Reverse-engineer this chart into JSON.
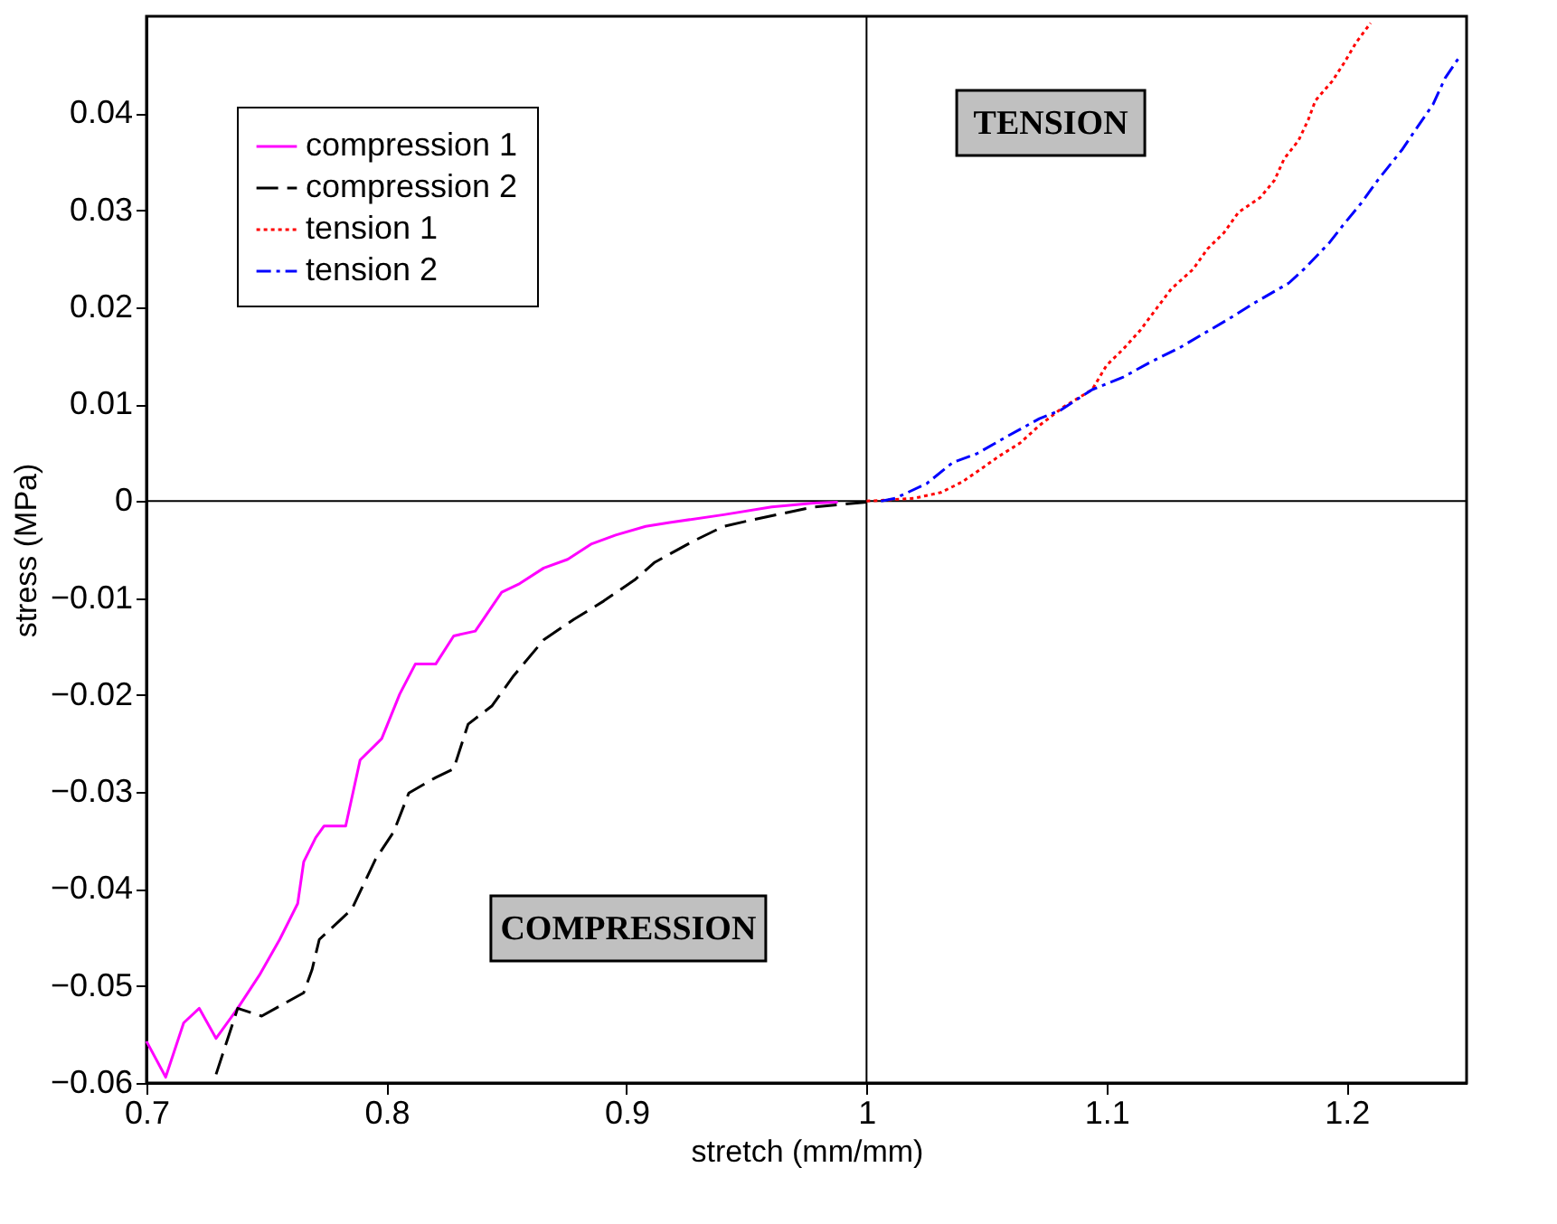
{
  "chart_data": {
    "type": "line",
    "xlabel": "stretch (mm/mm)",
    "ylabel": "stress (MPa)",
    "xlim": [
      0.7,
      1.25
    ],
    "xticks": [
      0.7,
      0.8,
      0.9,
      1,
      1.1,
      1.2
    ],
    "ylim": [
      -0.06,
      0.05
    ],
    "yticks": [
      -0.06,
      -0.05,
      -0.04,
      -0.03,
      -0.02,
      -0.01,
      0,
      0.01,
      0.02,
      0.03,
      0.04
    ],
    "grid": false,
    "legend": "top left",
    "marker": "none",
    "annotations": [
      "TENSION",
      "COMPRESSION"
    ],
    "ref_lines": [
      {
        "axis": "x",
        "value": 1,
        "color": "#000000"
      },
      {
        "axis": "y",
        "value": 0,
        "color": "#000000"
      }
    ],
    "series": [
      {
        "name": "compression 1",
        "color": "#ff00ff",
        "line_style": "solid",
        "x": [
          0.7,
          0.708,
          0.7155,
          0.722,
          0.729,
          0.738,
          0.747,
          0.7555,
          0.763,
          0.7655,
          0.7705,
          0.774,
          0.783,
          0.789,
          0.798,
          0.8055,
          0.812,
          0.8205,
          0.828,
          0.837,
          0.848,
          0.8555,
          0.8655,
          0.8755,
          0.8855,
          0.8955,
          0.908,
          0.918,
          0.9405,
          0.9605,
          0.978,
          0.988
        ],
        "values": [
          -0.0557,
          -0.0594,
          -0.0538,
          -0.0523,
          -0.0554,
          -0.0523,
          -0.0489,
          -0.0452,
          -0.0415,
          -0.0372,
          -0.0347,
          -0.0335,
          -0.0335,
          -0.0267,
          -0.0245,
          -0.0199,
          -0.0168,
          -0.0168,
          -0.0139,
          -0.0134,
          -0.0094,
          -0.0085,
          -0.0069,
          -0.006,
          -0.0044,
          -0.0035,
          -0.0026,
          -0.0022,
          -0.0014,
          -0.0006,
          -0.0002,
          -0.0001
        ]
      },
      {
        "name": "compression 2",
        "color": "#000000",
        "line_style": "dashed",
        "x": [
          0.729,
          0.738,
          0.748,
          0.7655,
          0.769,
          0.772,
          0.7855,
          0.7955,
          0.803,
          0.8093,
          0.8205,
          0.828,
          0.834,
          0.844,
          0.853,
          0.8655,
          0.878,
          0.8905,
          0.9035,
          0.9118,
          0.928,
          0.9405,
          0.953,
          0.978,
          1.0
        ],
        "values": [
          -0.0591,
          -0.0523,
          -0.0531,
          -0.0507,
          -0.0483,
          -0.0452,
          -0.0421,
          -0.0369,
          -0.0341,
          -0.0301,
          -0.0285,
          -0.0276,
          -0.023,
          -0.0211,
          -0.018,
          -0.0143,
          -0.0122,
          -0.0103,
          -0.0081,
          -0.0063,
          -0.0041,
          -0.0026,
          -0.0019,
          -0.0006,
          -0.0001
        ]
      },
      {
        "name": "tension 1",
        "color": "#ff0000",
        "line_style": "dotted",
        "x": [
          1.0,
          1.02,
          1.031,
          1.04,
          1.047,
          1.055,
          1.064,
          1.072,
          1.082,
          1.094,
          1.1,
          1.107,
          1.114,
          1.12,
          1.127,
          1.136,
          1.142,
          1.149,
          1.155,
          1.164,
          1.17,
          1.174,
          1.18,
          1.184,
          1.187,
          1.194,
          1.199,
          1.204,
          1.21
        ],
        "values": [
          0,
          0.0003,
          0.0009,
          0.002,
          0.0032,
          0.0046,
          0.006,
          0.0078,
          0.0097,
          0.0115,
          0.014,
          0.0157,
          0.0176,
          0.0196,
          0.0219,
          0.0239,
          0.026,
          0.0277,
          0.0298,
          0.0313,
          0.0331,
          0.0353,
          0.0372,
          0.0393,
          0.0413,
          0.0433,
          0.0452,
          0.0473,
          0.0493
        ]
      },
      {
        "name": "tension 2",
        "color": "#0000ff",
        "line_style": "dashdot",
        "x": [
          1.006,
          1.012,
          1.025,
          1.036,
          1.046,
          1.058,
          1.072,
          1.081,
          1.094,
          1.107,
          1.118,
          1.131,
          1.142,
          1.151,
          1.162,
          1.176,
          1.183,
          1.193,
          1.199,
          1.206,
          1.213,
          1.223,
          1.229,
          1.236,
          1.241,
          1.247
        ],
        "values": [
          0,
          0.0003,
          0.0018,
          0.004,
          0.0049,
          0.0066,
          0.0085,
          0.0094,
          0.0115,
          0.0128,
          0.0143,
          0.0159,
          0.0175,
          0.0188,
          0.0205,
          0.0225,
          0.0241,
          0.0267,
          0.0286,
          0.0307,
          0.0331,
          0.0362,
          0.0384,
          0.0409,
          0.0436,
          0.0458
        ]
      }
    ]
  }
}
